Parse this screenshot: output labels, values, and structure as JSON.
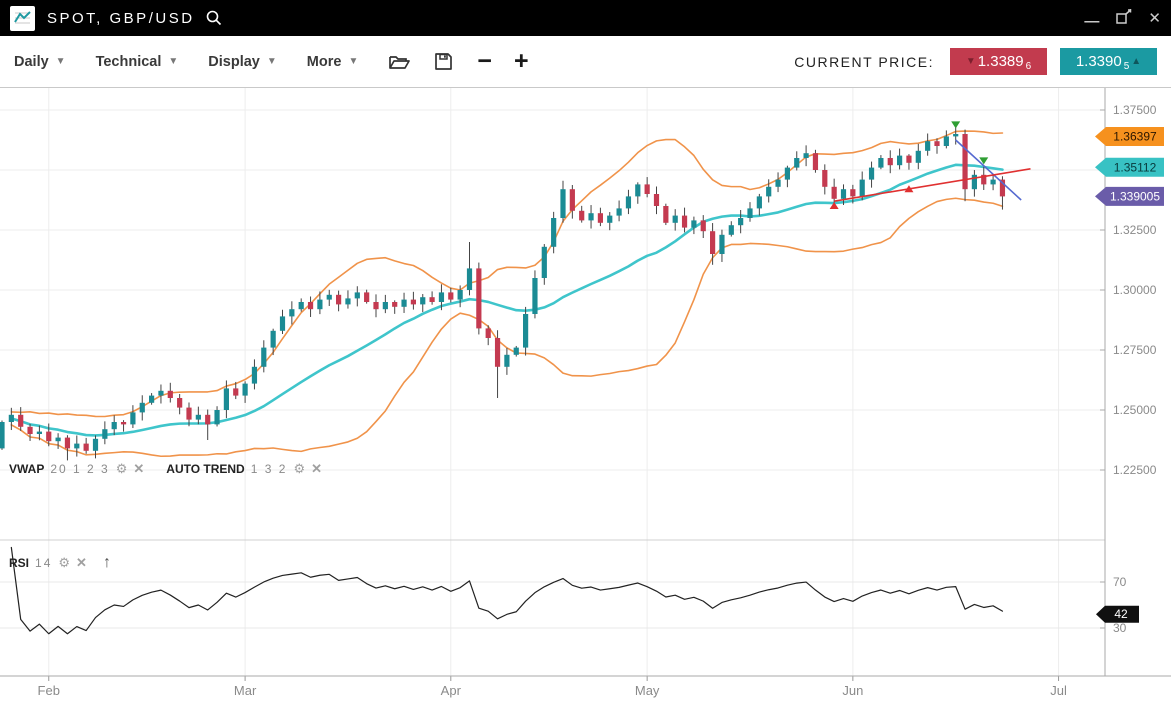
{
  "title_bar": {
    "symbol": "SPOT, GBP/USD",
    "window": {
      "minimize_glyph": "—",
      "close_glyph": "✕"
    }
  },
  "toolbar": {
    "dropdowns": [
      {
        "label": "Daily"
      },
      {
        "label": "Technical"
      },
      {
        "label": "Display"
      },
      {
        "label": "More"
      }
    ],
    "caret_glyph": "▼",
    "zoom_out_glyph": "−",
    "zoom_in_glyph": "+",
    "current_price_label": "CURRENT PRICE:",
    "bid": {
      "arrow": "▼",
      "main": "1.3389",
      "pip": "6"
    },
    "ask": {
      "arrow": "▲",
      "main": "1.3390",
      "pip": "5"
    }
  },
  "icons": {
    "gear": "⚙",
    "close": "✕",
    "up_arrow": "↑"
  },
  "indicators": {
    "vwap": {
      "name": "VWAP",
      "params": "20 1 2 3"
    },
    "auto_trend": {
      "name": "AUTO TREND",
      "params": "1 3 2"
    },
    "rsi": {
      "name": "RSI",
      "params": "14"
    }
  },
  "axes": {
    "price_ticks": [
      {
        "label": "1.37500",
        "value": 1.375
      },
      {
        "label": "1.35000",
        "value": 1.35
      },
      {
        "label": "1.32500",
        "value": 1.325
      },
      {
        "label": "1.30000",
        "value": 1.3
      },
      {
        "label": "1.27500",
        "value": 1.275
      },
      {
        "label": "1.25000",
        "value": 1.25
      },
      {
        "label": "1.22500",
        "value": 1.225
      }
    ],
    "rsi_ticks": [
      {
        "label": "70",
        "value": 70
      },
      {
        "label": "30",
        "value": 30
      }
    ]
  },
  "price_badges": [
    {
      "name": "upper-band-badge",
      "text": "1.36397",
      "value": 1.36397,
      "bg": "#f6911e",
      "fg": "#2b1600"
    },
    {
      "name": "vwap-badge",
      "text": "1.35112",
      "value": 1.35112,
      "bg": "#38c2c4",
      "fg": "#083a3c"
    },
    {
      "name": "auto-trend-badge",
      "text": "1.339005",
      "value": 1.339005,
      "bg": "#6a5ca9",
      "fg": "#ffffff"
    }
  ],
  "rsi_badge": {
    "text": "42",
    "value": 42,
    "bg": "#101010",
    "fg": "#ffffff"
  },
  "colors": {
    "candle_up": "#1b8b94",
    "candle_down": "#c43a50",
    "wick": "#444444",
    "vwap_line": "#3fc5cb",
    "band_line": "#f0934a",
    "trend_up_line": "#e03030",
    "trend_down_line": "#5569d0",
    "signal_buy": "#e03030",
    "signal_sell": "#2f9e33",
    "rsi_line": "#222222",
    "grid": "#ededed",
    "grid_rsi": "#e8e8e8",
    "axis": "#aaaaaa",
    "axis_text": "#8a8a8a",
    "divider": "#d0d0d0"
  },
  "chart_data": {
    "type": "candlestick",
    "symbol": "GBP/USD",
    "timeframe": "Daily",
    "ylim": [
      1.196,
      1.384
    ],
    "first_open": 1.234,
    "closes": [
      1.245,
      1.248,
      1.243,
      1.24,
      1.241,
      1.237,
      1.2385,
      1.234,
      1.236,
      1.233,
      1.238,
      1.242,
      1.245,
      1.244,
      1.249,
      1.253,
      1.256,
      1.258,
      1.255,
      1.251,
      1.246,
      1.248,
      1.244,
      1.25,
      1.259,
      1.256,
      1.261,
      1.268,
      1.276,
      1.283,
      1.289,
      1.292,
      1.295,
      1.292,
      1.296,
      1.298,
      1.294,
      1.2965,
      1.299,
      1.295,
      1.292,
      1.295,
      1.293,
      1.296,
      1.294,
      1.297,
      1.295,
      1.299,
      1.296,
      1.3,
      1.309,
      1.284,
      1.28,
      1.268,
      1.273,
      1.276,
      1.29,
      1.305,
      1.318,
      1.33,
      1.342,
      1.333,
      1.329,
      1.332,
      1.328,
      1.331,
      1.334,
      1.339,
      1.344,
      1.34,
      1.335,
      1.328,
      1.331,
      1.326,
      1.329,
      1.3245,
      1.315,
      1.323,
      1.327,
      1.33,
      1.334,
      1.339,
      1.343,
      1.346,
      1.351,
      1.355,
      1.357,
      1.35,
      1.343,
      1.338,
      1.342,
      1.339,
      1.346,
      1.351,
      1.355,
      1.352,
      1.356,
      1.353,
      1.358,
      1.362,
      1.36,
      1.364,
      1.365,
      1.342,
      1.348,
      1.344,
      1.346,
      1.339
    ],
    "wick_high_overrides": {
      "7": 1.2395,
      "50": 1.32,
      "60": 1.3455,
      "102": 1.368
    },
    "wick_low_overrides": {
      "7": 1.229,
      "22": 1.2375,
      "53": 1.255,
      "76": 1.3105,
      "103": 1.337,
      "107": 1.3335
    },
    "indicators": {
      "vwap_period": 20,
      "band_mult": 1.8,
      "rsi_period": 14
    },
    "months": [
      {
        "label": "Feb",
        "index": 5
      },
      {
        "label": "Mar",
        "index": 26
      },
      {
        "label": "Apr",
        "index": 48
      },
      {
        "label": "May",
        "index": 69
      },
      {
        "label": "Jun",
        "index": 91
      },
      {
        "label": "Jul",
        "index": 113
      }
    ],
    "trend_lines": [
      {
        "name": "auto-trend-down",
        "kind": "down",
        "i1": 102,
        "p1": 1.3625,
        "i2": 109,
        "p2": 1.3375
      },
      {
        "name": "auto-trend-up",
        "kind": "up",
        "i1": 89,
        "p1": 1.337,
        "i2": 110,
        "p2": 1.3505
      }
    ],
    "signals": [
      {
        "type": "buy",
        "index": 89,
        "price": 1.335
      },
      {
        "type": "buy",
        "index": 97,
        "price": 1.342
      },
      {
        "type": "sell",
        "index": 102,
        "price": 1.369
      },
      {
        "type": "sell",
        "index": 105,
        "price": 1.354
      }
    ]
  }
}
